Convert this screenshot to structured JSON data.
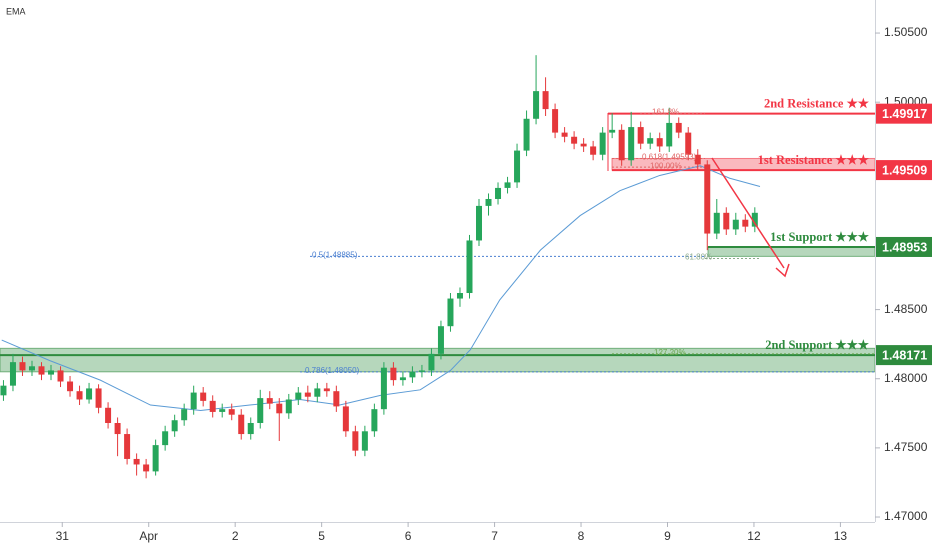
{
  "chart_data": {
    "type": "candlestick",
    "indicator_label": "EMA",
    "x": [
      -0.68,
      -0.57,
      -0.46,
      -0.35,
      -0.24,
      -0.13,
      -0.02,
      0.09,
      0.2,
      0.31,
      0.42,
      0.53,
      0.64,
      0.75,
      0.86,
      0.97,
      1.08,
      1.19,
      1.3,
      1.41,
      1.52,
      1.63,
      1.74,
      1.85,
      1.96,
      2.07,
      2.18,
      2.29,
      2.4,
      2.51,
      2.62,
      2.73,
      2.84,
      2.95,
      3.06,
      3.17,
      3.28,
      3.39,
      3.5,
      3.61,
      3.72,
      3.83,
      3.94,
      4.05,
      4.16,
      4.27,
      4.38,
      4.49,
      4.6,
      4.71,
      4.82,
      4.93,
      5.04,
      5.15,
      5.26,
      5.37,
      5.48,
      5.59,
      5.7,
      5.81,
      5.92,
      6.03,
      6.14,
      6.25,
      6.36,
      6.47,
      6.58,
      6.69,
      6.8,
      6.91,
      7.02,
      7.13,
      7.24,
      7.35,
      7.46,
      7.57,
      7.68,
      7.79,
      7.9,
      8.01
    ],
    "open": [
      1.4788,
      1.4795,
      1.4812,
      1.4806,
      1.4809,
      1.4803,
      1.4806,
      1.4798,
      1.4791,
      1.4785,
      1.4793,
      1.4779,
      1.4768,
      1.476,
      1.4742,
      1.4738,
      1.4733,
      1.4752,
      1.4762,
      1.477,
      1.4778,
      1.479,
      1.4784,
      1.4776,
      1.4778,
      1.4774,
      1.476,
      1.4768,
      1.4786,
      1.4782,
      1.4775,
      1.4785,
      1.479,
      1.4787,
      1.4793,
      1.4791,
      1.478,
      1.4762,
      1.4748,
      1.4762,
      1.4778,
      1.4808,
      1.4799,
      1.4801,
      1.4805,
      1.4806,
      1.4818,
      1.4838,
      1.4858,
      1.4862,
      1.49,
      1.4925,
      1.493,
      1.4938,
      1.4942,
      1.4965,
      1.4988,
      1.5008,
      1.4995,
      1.4978,
      1.4975,
      1.497,
      1.4968,
      1.4962,
      1.4978,
      1.498,
      1.4958,
      1.4982,
      1.497,
      1.4974,
      1.4968,
      1.4985,
      1.4978,
      1.4962,
      1.4955,
      1.4905,
      1.492,
      1.4908,
      1.4915,
      1.491
    ],
    "high": [
      1.4799,
      1.4818,
      1.4816,
      1.4813,
      1.4812,
      1.481,
      1.4809,
      1.4802,
      1.4795,
      1.4797,
      1.4796,
      1.4783,
      1.4772,
      1.4764,
      1.4746,
      1.4742,
      1.4756,
      1.4766,
      1.4774,
      1.4782,
      1.4795,
      1.4794,
      1.4788,
      1.4782,
      1.4782,
      1.4778,
      1.4772,
      1.4792,
      1.4791,
      1.4786,
      1.4789,
      1.4794,
      1.4795,
      1.4797,
      1.4797,
      1.4795,
      1.4784,
      1.4766,
      1.4766,
      1.4782,
      1.4812,
      1.4812,
      1.4805,
      1.4809,
      1.481,
      1.4822,
      1.4842,
      1.4862,
      1.4866,
      1.4904,
      1.493,
      1.4934,
      1.4942,
      1.4946,
      1.497,
      1.4994,
      1.5034,
      1.5018,
      1.4999,
      1.4982,
      1.4979,
      1.4974,
      1.4972,
      1.4982,
      1.4992,
      1.4984,
      1.4993,
      1.4986,
      1.4978,
      1.4978,
      1.4996,
      1.4989,
      1.4982,
      1.4966,
      1.4958,
      1.493,
      1.4924,
      1.492,
      1.4919,
      1.4924
    ],
    "low": [
      1.4784,
      1.4791,
      1.4802,
      1.4802,
      1.4799,
      1.4799,
      1.4794,
      1.4787,
      1.4781,
      1.4782,
      1.4775,
      1.4764,
      1.4744,
      1.4738,
      1.473,
      1.4728,
      1.473,
      1.4748,
      1.4758,
      1.4766,
      1.4774,
      1.478,
      1.4772,
      1.4772,
      1.477,
      1.4756,
      1.4756,
      1.4764,
      1.4778,
      1.4755,
      1.4771,
      1.4781,
      1.4783,
      1.4783,
      1.4787,
      1.4776,
      1.4758,
      1.4744,
      1.4744,
      1.4758,
      1.4774,
      1.4795,
      1.4795,
      1.4797,
      1.4801,
      1.4802,
      1.4814,
      1.4834,
      1.4852,
      1.4858,
      1.4896,
      1.4918,
      1.4926,
      1.4934,
      1.4938,
      1.4961,
      1.4984,
      1.499,
      1.4974,
      1.4971,
      1.4966,
      1.4964,
      1.4958,
      1.4958,
      1.4974,
      1.4954,
      1.4954,
      1.4966,
      1.4966,
      1.4964,
      1.4964,
      1.4974,
      1.4958,
      1.4951,
      1.4893,
      1.4901,
      1.4904,
      1.4904,
      1.4906,
      1.4906
    ],
    "close": [
      1.4795,
      1.4812,
      1.4806,
      1.4809,
      1.4803,
      1.4806,
      1.4798,
      1.4791,
      1.4785,
      1.4793,
      1.4779,
      1.4768,
      1.476,
      1.4742,
      1.4738,
      1.4733,
      1.4752,
      1.4762,
      1.477,
      1.4778,
      1.479,
      1.4784,
      1.4776,
      1.4778,
      1.4774,
      1.476,
      1.4768,
      1.4786,
      1.4782,
      1.4775,
      1.4785,
      1.479,
      1.4787,
      1.4793,
      1.4791,
      1.478,
      1.4762,
      1.4748,
      1.4762,
      1.4778,
      1.4808,
      1.4799,
      1.4801,
      1.4805,
      1.4806,
      1.4818,
      1.4838,
      1.4858,
      1.4862,
      1.49,
      1.4925,
      1.493,
      1.4938,
      1.4942,
      1.4965,
      1.4988,
      1.5008,
      1.4995,
      1.4978,
      1.4975,
      1.497,
      1.4968,
      1.4962,
      1.4978,
      1.498,
      1.4958,
      1.4982,
      1.497,
      1.4974,
      1.4968,
      1.4985,
      1.4978,
      1.4962,
      1.4955,
      1.4905,
      1.492,
      1.4908,
      1.4915,
      1.491,
      1.492
    ],
    "up_color": "#26a65b",
    "down_color": "#e5383b",
    "ema": {
      "x": [
        -0.7,
        -0.14,
        0.44,
        1.02,
        1.6,
        2.17,
        2.75,
        3.21,
        3.68,
        4.14,
        4.49,
        4.72,
        5.06,
        5.53,
        5.99,
        6.45,
        6.91,
        7.38,
        7.72,
        8.07
      ],
      "values": [
        1.4828,
        1.4813,
        1.4799,
        1.4781,
        1.4777,
        1.4781,
        1.4785,
        1.4781,
        1.4788,
        1.4792,
        1.4806,
        1.4821,
        1.4857,
        1.4893,
        1.4918,
        1.4936,
        1.4947,
        1.4954,
        1.4945,
        1.4939
      ],
      "color": "#5b9bd5"
    },
    "xlim": [
      -0.72,
      9.4
    ],
    "xticks": [
      {
        "value": 0,
        "label": "31"
      },
      {
        "value": 1,
        "label": "Apr"
      },
      2,
      {
        "value": 3,
        "label": "5"
      },
      {
        "value": 4,
        "label": "6"
      },
      {
        "value": 5,
        "label": "7"
      },
      {
        "value": 6,
        "label": "8"
      },
      {
        "value": 7,
        "label": "9"
      },
      {
        "value": 8,
        "label": "12"
      },
      {
        "value": 9,
        "label": "13"
      }
    ],
    "ylim": [
      1.46964,
      1.50739
    ],
    "yticks": [
      {
        "value": 1.505,
        "label": "1.50500"
      },
      {
        "value": 1.5,
        "label": "1.50000"
      },
      {
        "value": 1.485,
        "label": "1.48500"
      },
      {
        "value": 1.48,
        "label": "1.48000"
      },
      {
        "value": 1.475,
        "label": "1.47500"
      },
      {
        "value": 1.47,
        "label": "1.47000"
      }
    ],
    "levels": [
      {
        "name": "2nd Resistance ★★",
        "price": 1.49917,
        "color": "#f23645"
      },
      {
        "name": "1st Resistance ★★★",
        "price": 1.49509,
        "zone_top": 1.49593,
        "color": "#f23645"
      },
      {
        "name": "1st Support ★★★",
        "price": 1.48953,
        "zone_bottom": 1.48885,
        "color": "#2e8b3e"
      },
      {
        "name": "2nd Support ★★★",
        "price": 1.48171,
        "zone_top": 1.4822,
        "zone_bottom": 1.4805,
        "color": "#2e8b3e"
      }
    ],
    "fib_levels": [
      {
        "label": "161.8%",
        "price": 1.4992,
        "color": "#e06666"
      },
      {
        "label": "0.618(1.49593)",
        "price": 1.49593,
        "color": "#e06666"
      },
      {
        "label": "100.00%",
        "price": 1.4953,
        "color": "#e06666"
      },
      {
        "label": "0.5(1.48885)",
        "price": 1.48885,
        "color": "#4a7fd0"
      },
      {
        "label": "61.80%",
        "price": 1.4887,
        "color": "#8aa98a"
      },
      {
        "label": "127.20%",
        "price": 1.4818,
        "color": "#6aa84f"
      },
      {
        "label": "0.786(1.48050)",
        "price": 1.4805,
        "color": "#4a7fd0"
      }
    ]
  }
}
